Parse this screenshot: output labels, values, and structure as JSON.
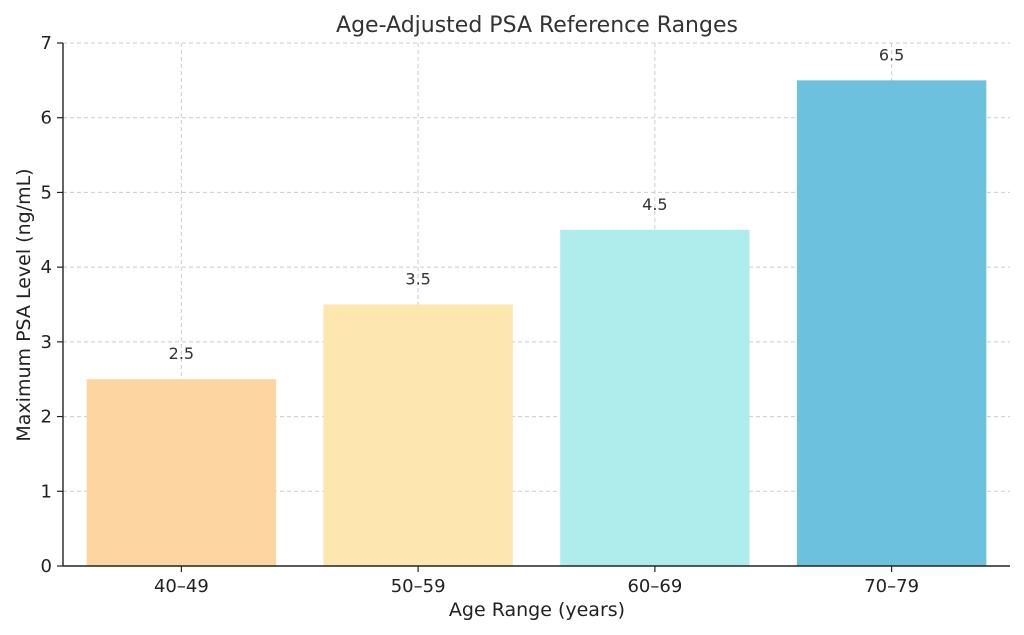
{
  "chart_data": {
    "type": "bar",
    "title": "Age-Adjusted PSA Reference Ranges",
    "xlabel": "Age Range (years)",
    "ylabel": "Maximum PSA Level (ng/mL)",
    "categories": [
      "40–49",
      "50–59",
      "60–69",
      "70–79"
    ],
    "values": [
      2.5,
      3.5,
      4.5,
      6.5
    ],
    "value_labels": [
      "2.5",
      "3.5",
      "4.5",
      "6.5"
    ],
    "colors": [
      "#FCD5A0",
      "#FEE6AF",
      "#AFEDEC",
      "#6CC1DE"
    ],
    "ylim": [
      0,
      7
    ],
    "yticks": [
      0,
      1,
      2,
      3,
      4,
      5,
      6,
      7
    ],
    "ytick_labels": [
      "0",
      "1",
      "2",
      "3",
      "4",
      "5",
      "6",
      "7"
    ],
    "grid": true
  }
}
